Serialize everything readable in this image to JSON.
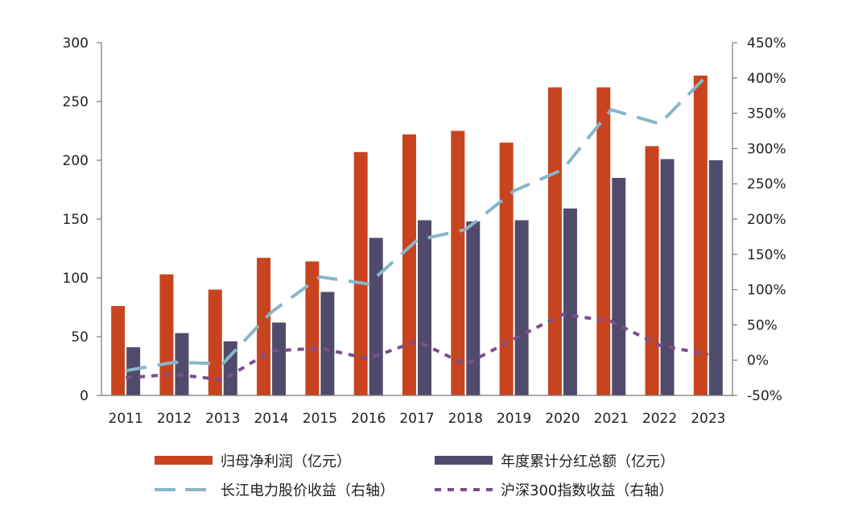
{
  "chart_data": {
    "type": "bar",
    "categories": [
      "2011",
      "2012",
      "2013",
      "2014",
      "2015",
      "2016",
      "2017",
      "2018",
      "2019",
      "2020",
      "2021",
      "2022",
      "2023"
    ],
    "series": [
      {
        "name": "归母净利润（亿元）",
        "type": "bar",
        "axis": "left",
        "color": "#c8441f",
        "values": [
          76,
          103,
          90,
          117,
          114,
          207,
          222,
          225,
          215,
          262,
          262,
          212,
          272
        ]
      },
      {
        "name": "年度累计分红总额（亿元）",
        "type": "bar",
        "axis": "left",
        "color": "#514b6b",
        "values": [
          41,
          53,
          46,
          62,
          88,
          134,
          149,
          148,
          149,
          159,
          185,
          201,
          200
        ]
      },
      {
        "name": "长江电力股价收益（右轴）",
        "type": "line",
        "axis": "right",
        "color": "#88b6c8",
        "dash": "long-dash",
        "values": [
          -15,
          -3,
          -5,
          68,
          118,
          108,
          170,
          185,
          240,
          270,
          355,
          335,
          405
        ]
      },
      {
        "name": "沪深300指数收益（右轴）",
        "type": "line",
        "axis": "right",
        "color": "#7b4f8f",
        "dash": "short-dash",
        "values": [
          -25,
          -20,
          -28,
          13,
          17,
          2,
          27,
          -6,
          30,
          65,
          55,
          21,
          8
        ]
      }
    ],
    "left_axis": {
      "min": 0,
      "max": 300,
      "step": 50,
      "ticks": [
        "0",
        "50",
        "100",
        "150",
        "200",
        "250",
        "300"
      ]
    },
    "right_axis": {
      "min": -50,
      "max": 450,
      "step": 50,
      "ticks": [
        "-50%",
        "0%",
        "50%",
        "100%",
        "150%",
        "200%",
        "250%",
        "300%",
        "350%",
        "400%",
        "450%"
      ]
    },
    "legend": [
      {
        "label": "归母净利润（亿元）",
        "symbol": "bar",
        "color": "#c8441f"
      },
      {
        "label": "年度累计分红总额（亿元）",
        "symbol": "bar",
        "color": "#514b6b"
      },
      {
        "label": "长江电力股价收益（右轴）",
        "symbol": "long-dash",
        "color": "#88b6c8"
      },
      {
        "label": "沪深300指数收益（右轴）",
        "symbol": "short-dash",
        "color": "#7b4f8f"
      }
    ],
    "legend_position": "bottom",
    "grid": false
  }
}
